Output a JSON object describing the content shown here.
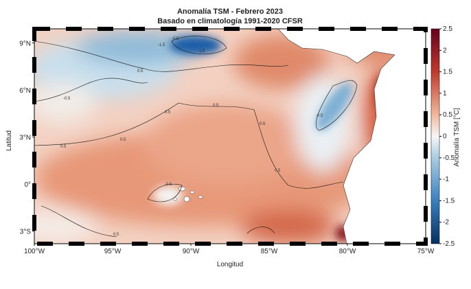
{
  "map": {
    "title": "Anomalía TSM - Febrero 2023",
    "subtitle": "Basado en climatología 1991-2020 CFSR",
    "xlabel": "Longitud",
    "ylabel": "Latitud",
    "xlim": [
      -100,
      -75
    ],
    "ylim": [
      -3.8,
      9.9
    ],
    "xticks": [
      {
        "value": -100,
        "label": "100°W"
      },
      {
        "value": -95,
        "label": "95°W"
      },
      {
        "value": -90,
        "label": "90°W"
      },
      {
        "value": -85,
        "label": "85°W"
      },
      {
        "value": -80,
        "label": "80°W"
      },
      {
        "value": -75,
        "label": "75°W"
      }
    ],
    "yticks": [
      {
        "value": 9,
        "label": "9°N"
      },
      {
        "value": 6,
        "label": "6°N"
      },
      {
        "value": 3,
        "label": "3°N"
      },
      {
        "value": 0,
        "label": "0°"
      },
      {
        "value": -3,
        "label": "3°S"
      }
    ],
    "colorbar": {
      "label": "Anomalía TSM [°C]",
      "lim": [
        -2.5,
        2.5
      ],
      "ticks": [
        2.5,
        2,
        1.5,
        1,
        0.5,
        0,
        -0.5,
        -1,
        -1.5,
        -2,
        -2.5
      ]
    },
    "contour_labels": [
      -0.5,
      -1.5,
      -1.5,
      0.5,
      -0.5,
      0.5,
      0.5,
      -0.5,
      0.5,
      0.5,
      0.5,
      0.5,
      -0.5,
      0.5
    ]
  }
}
